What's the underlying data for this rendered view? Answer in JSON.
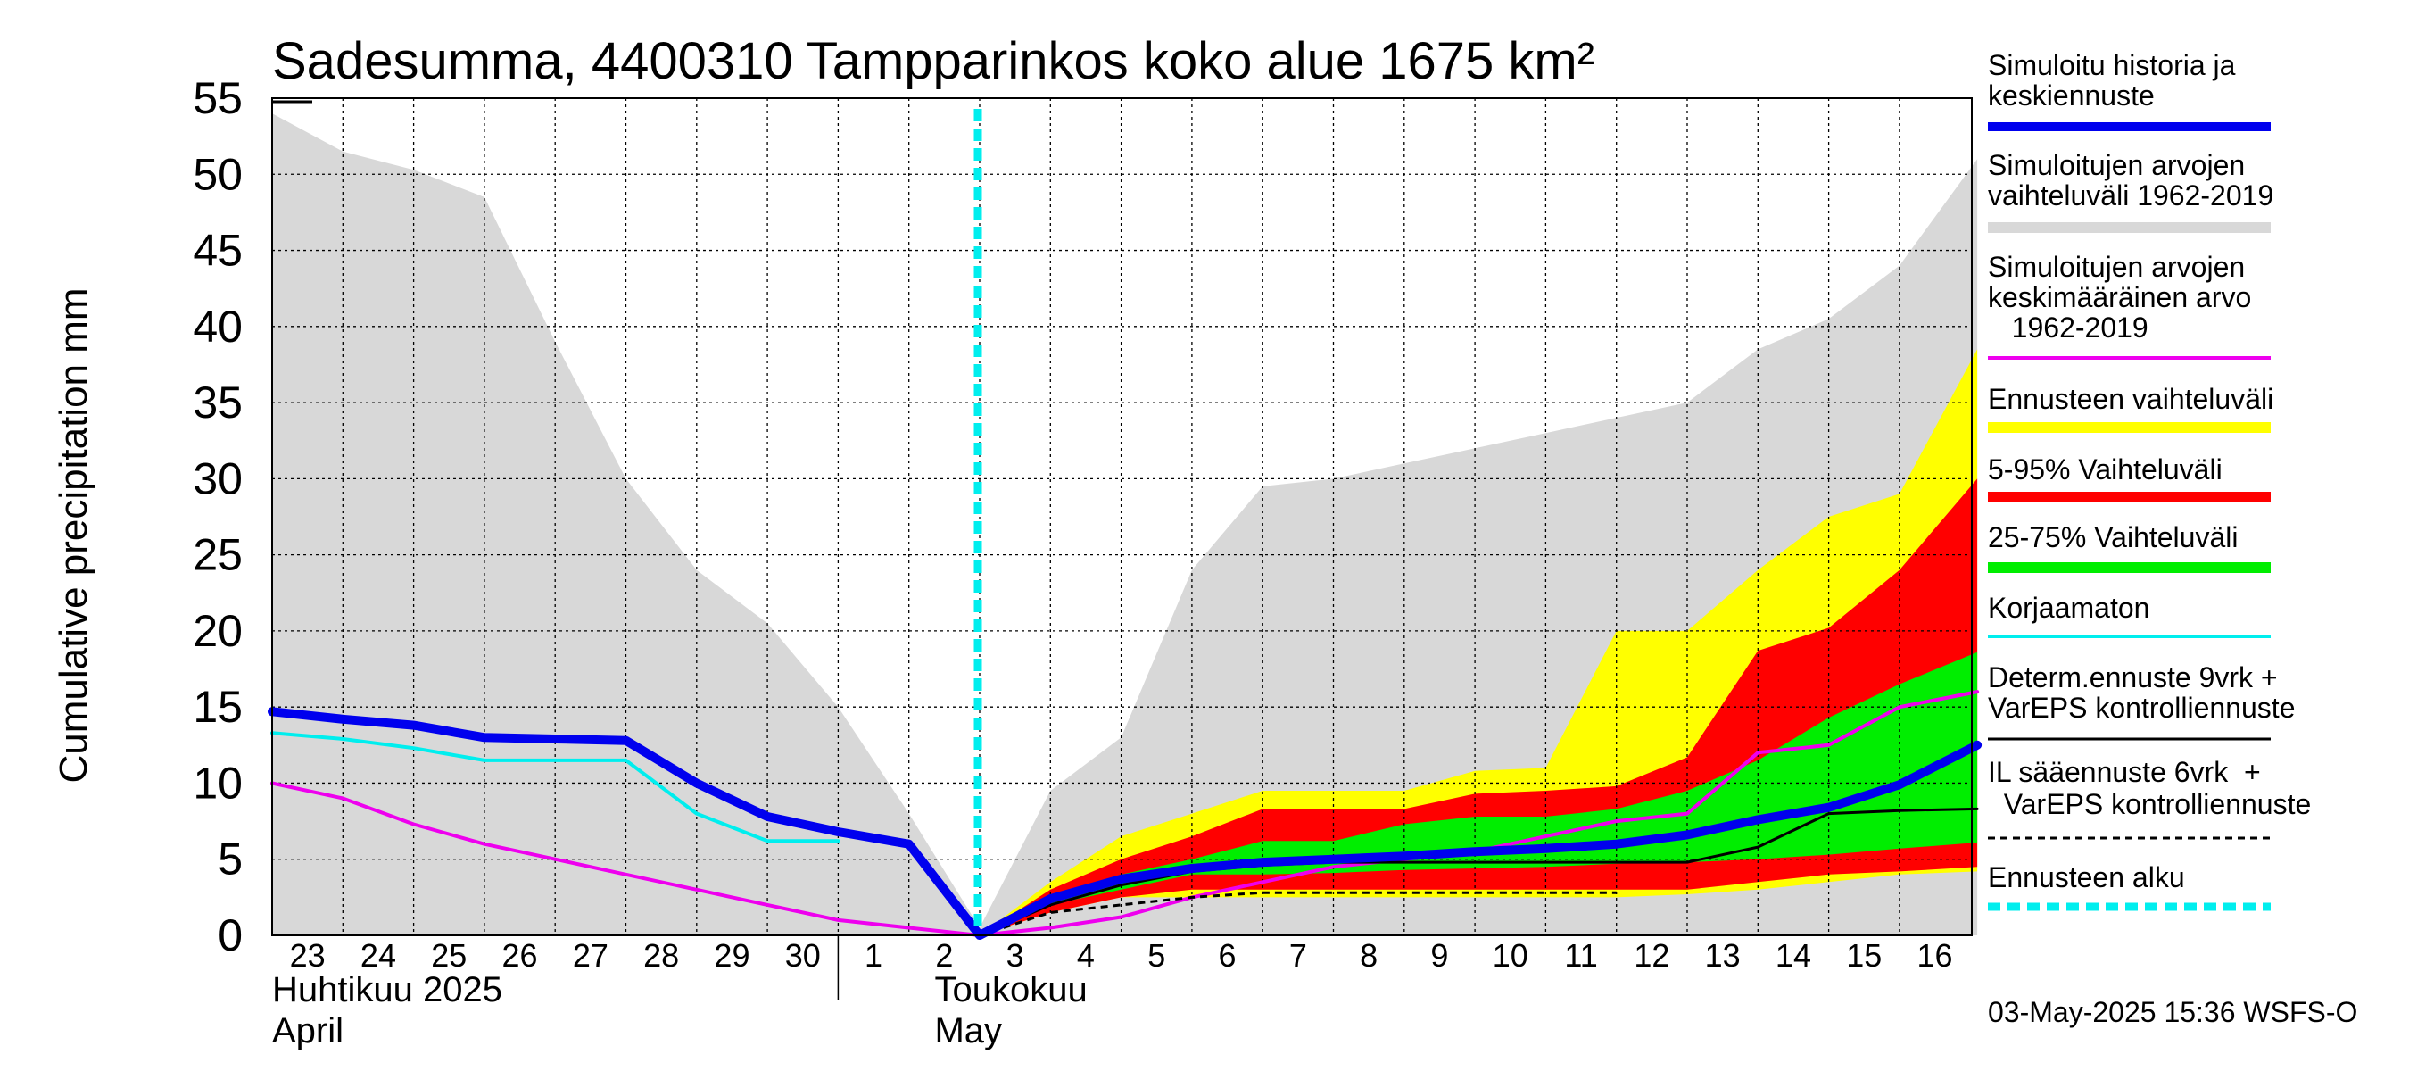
{
  "chart_data": {
    "type": "area",
    "title": "Sadesumma, 4400310 Tampparinkos koko alue 1675 km²",
    "ylabel": "Cumulative precipitation   mm",
    "xlabel": "",
    "ylim": [
      0,
      55
    ],
    "yticks": [
      0,
      5,
      10,
      15,
      20,
      25,
      30,
      35,
      40,
      45,
      50,
      55
    ],
    "grid": true,
    "x_start_day_index": 0,
    "x_end_day_index": 24.1,
    "day_labels": [
      "23",
      "24",
      "25",
      "26",
      "27",
      "28",
      "29",
      "30",
      "1",
      "2",
      "3",
      "4",
      "5",
      "6",
      "7",
      "8",
      "9",
      "10",
      "11",
      "12",
      "13",
      "14",
      "15",
      "16"
    ],
    "month_labels": [
      {
        "fi": "Huhtikuu  2025",
        "en": "April",
        "day_index": 0
      },
      {
        "fi": "Toukokuu",
        "en": "May",
        "day_index": 9.3
      }
    ],
    "month_divider_day_index": 8.0,
    "forecast_start_day_index": 10.0,
    "series": [
      {
        "name": "Simuloitujen arvojen vaihteluväli 1962-2019",
        "kind": "band",
        "color": "#d8d8d8",
        "x": [
          0,
          1,
          2,
          3,
          4,
          5,
          6,
          7,
          8,
          9,
          10,
          11,
          12,
          13,
          14,
          15,
          16,
          17,
          18,
          19,
          20,
          21,
          22,
          23,
          24.1
        ],
        "lower": [
          0,
          0,
          0,
          0,
          0,
          0,
          0,
          0,
          0,
          0,
          0,
          0,
          0,
          0,
          0,
          0,
          0,
          0,
          0,
          0,
          0,
          0,
          0,
          0,
          0
        ],
        "upper": [
          54,
          51.5,
          50.3,
          48.5,
          39,
          30,
          24,
          20.5,
          15,
          8,
          0.5,
          9.5,
          13,
          24,
          29.5,
          30,
          31,
          32,
          33,
          34,
          35,
          38.5,
          40.5,
          44,
          51
        ]
      },
      {
        "name": "Ennusteen vaihteluväli",
        "kind": "band",
        "color": "#ffff00",
        "x": [
          10,
          11,
          12,
          13,
          14,
          15,
          16,
          17,
          18,
          19,
          20,
          21,
          22,
          23,
          24.1
        ],
        "lower": [
          0,
          1.5,
          2.5,
          2.5,
          2.5,
          2.5,
          2.5,
          2.5,
          2.5,
          2.5,
          2.7,
          3,
          3.5,
          4,
          4.2
        ],
        "upper": [
          0,
          3.5,
          6.5,
          8,
          9.5,
          9.5,
          9.5,
          10.8,
          11,
          20,
          20,
          24,
          27.5,
          29,
          38.5
        ]
      },
      {
        "name": "5-95% Vaihteluväli",
        "kind": "band",
        "color": "#ff0000",
        "x": [
          10,
          11,
          12,
          13,
          14,
          15,
          16,
          17,
          18,
          19,
          20,
          21,
          22,
          23,
          24.1
        ],
        "lower": [
          0,
          1.5,
          2.5,
          3,
          3,
          3,
          3,
          3,
          3,
          3,
          3,
          3.5,
          4,
          4.2,
          4.5
        ],
        "upper": [
          0,
          3,
          5,
          6.5,
          8.3,
          8.3,
          8.3,
          9.3,
          9.5,
          9.8,
          11.7,
          18.7,
          20.2,
          24,
          30
        ]
      },
      {
        "name": "25-75% Vaihteluväli",
        "kind": "band",
        "color": "#00ee00",
        "x": [
          10,
          11,
          12,
          13,
          14,
          15,
          16,
          17,
          18,
          19,
          20,
          21,
          22,
          23,
          24.1
        ],
        "lower": [
          0,
          2,
          3,
          4,
          4,
          4.1,
          4.3,
          4.4,
          4.5,
          4.7,
          4.8,
          5,
          5.3,
          5.7,
          6.1
        ],
        "upper": [
          0,
          2.5,
          4,
          5,
          6.2,
          6.2,
          7.3,
          7.8,
          7.8,
          8.3,
          9.5,
          11.5,
          14.3,
          16.5,
          18.6
        ]
      },
      {
        "name": "Simuloitujen arvojen keskimääräinen arvo 1962-2019",
        "kind": "line",
        "color": "#ee00ee",
        "width": 4,
        "x": [
          0,
          1,
          2,
          3,
          4,
          5,
          6,
          7,
          8,
          9,
          10,
          11,
          12,
          13,
          14,
          15,
          16,
          17,
          18,
          19,
          20,
          21,
          22,
          23,
          24.1
        ],
        "y": [
          10,
          9,
          7.3,
          6,
          5,
          4,
          3,
          2,
          1,
          0.5,
          0,
          0.5,
          1.2,
          2.5,
          3.5,
          4.5,
          5,
          5.5,
          6.5,
          7.5,
          8,
          12,
          12.5,
          15,
          16
        ]
      },
      {
        "name": "Korjaamaton",
        "kind": "line",
        "color": "#00eeee",
        "width": 4,
        "x": [
          0,
          1,
          2,
          3,
          4,
          5,
          6,
          7,
          8
        ],
        "y": [
          13.3,
          12.9,
          12.3,
          11.5,
          11.5,
          11.5,
          8,
          6.2,
          6.2
        ]
      },
      {
        "name": "IL sääennuste 6vrk + VarEPS kontrolliennuste",
        "kind": "line",
        "color": "#000000",
        "width": 3,
        "dashed": true,
        "x": [
          10,
          11,
          12,
          13,
          14,
          15,
          16,
          17,
          18,
          19
        ],
        "y": [
          0,
          1.5,
          2,
          2.5,
          2.8,
          2.8,
          2.8,
          2.8,
          2.8,
          2.8
        ]
      },
      {
        "name": "Determ.ennuste 9vrk + VarEPS kontrolliennuste",
        "kind": "line",
        "color": "#000000",
        "width": 3,
        "x": [
          10,
          11,
          12,
          13,
          14,
          15,
          16,
          17,
          18,
          19,
          20,
          21,
          22,
          23,
          24.1
        ],
        "y": [
          0,
          2,
          3.3,
          4.2,
          4.6,
          4.8,
          4.8,
          4.8,
          4.8,
          4.8,
          4.8,
          5.8,
          8,
          8.2,
          8.3
        ]
      },
      {
        "name": "Simuloitu historia ja keskiennuste",
        "kind": "line",
        "color": "#0000ee",
        "width": 10,
        "x": [
          0,
          1,
          2,
          3,
          4,
          5,
          6,
          7,
          8,
          9,
          10,
          11,
          12,
          13,
          14,
          15,
          16,
          17,
          18,
          19,
          20,
          21,
          22,
          23,
          24.1
        ],
        "y": [
          14.7,
          14.2,
          13.8,
          13,
          12.9,
          12.8,
          10,
          7.8,
          6.8,
          6,
          0,
          2.4,
          3.7,
          4.4,
          4.8,
          5,
          5.2,
          5.5,
          5.7,
          6,
          6.6,
          7.6,
          8.4,
          9.9,
          12.5
        ]
      }
    ],
    "legend": [
      {
        "label": "Simuloitu historia ja keskiennuste",
        "color": "#0000ee",
        "style": "thick"
      },
      {
        "label": "Simuloitujen arvojen vaihteluväli 1962-2019",
        "color": "#d8d8d8",
        "style": "thick"
      },
      {
        "label": "Simuloitujen arvojen keskimääräinen arvo 1962-2019",
        "color": "#ee00ee",
        "style": "thin"
      },
      {
        "label": "Ennusteen vaihteluväli",
        "color": "#ffff00",
        "style": "thick"
      },
      {
        "label": "5-95% Vaihteluväli",
        "color": "#ff0000",
        "style": "thick"
      },
      {
        "label": "25-75% Vaihteluväli",
        "color": "#00ee00",
        "style": "thick"
      },
      {
        "label": "Korjaamaton",
        "color": "#00eeee",
        "style": "thin"
      },
      {
        "label": "Determ.ennuste 9vrk + VarEPS kontrolliennuste",
        "color": "#000000",
        "style": "thin"
      },
      {
        "label": "IL sääennuste 6vrk + VarEPS kontrolliennuste",
        "color": "#000000",
        "style": "dashed"
      },
      {
        "label": "Ennusteen alku",
        "color": "#00eeee",
        "style": "dotted-thick"
      }
    ],
    "legend_placement": "right",
    "footer": "03-May-2025 15:36 WSFS-O"
  },
  "legend_text": {
    "sim_history": [
      "Simuloitu historia ja",
      "keskiennuste"
    ],
    "sim_range": [
      "Simuloitujen arvojen",
      "vaihteluväli 1962-2019"
    ],
    "sim_mean": [
      "Simuloitujen arvojen",
      "keskimääräinen arvo",
      "   1962-2019"
    ],
    "fc_range": [
      "Ennusteen vaihteluväli"
    ],
    "p5_95": [
      "5-95% Vaihteluväli"
    ],
    "p25_75": [
      "25-75% Vaihteluväli"
    ],
    "uncorrected": [
      "Korjaamaton"
    ],
    "determ": [
      "Determ.ennuste 9vrk +",
      "VarEPS kontrolliennuste"
    ],
    "il": [
      "IL sääennuste 6vrk  +",
      "  VarEPS kontrolliennuste"
    ],
    "fc_start": [
      "Ennusteen alku"
    ]
  }
}
